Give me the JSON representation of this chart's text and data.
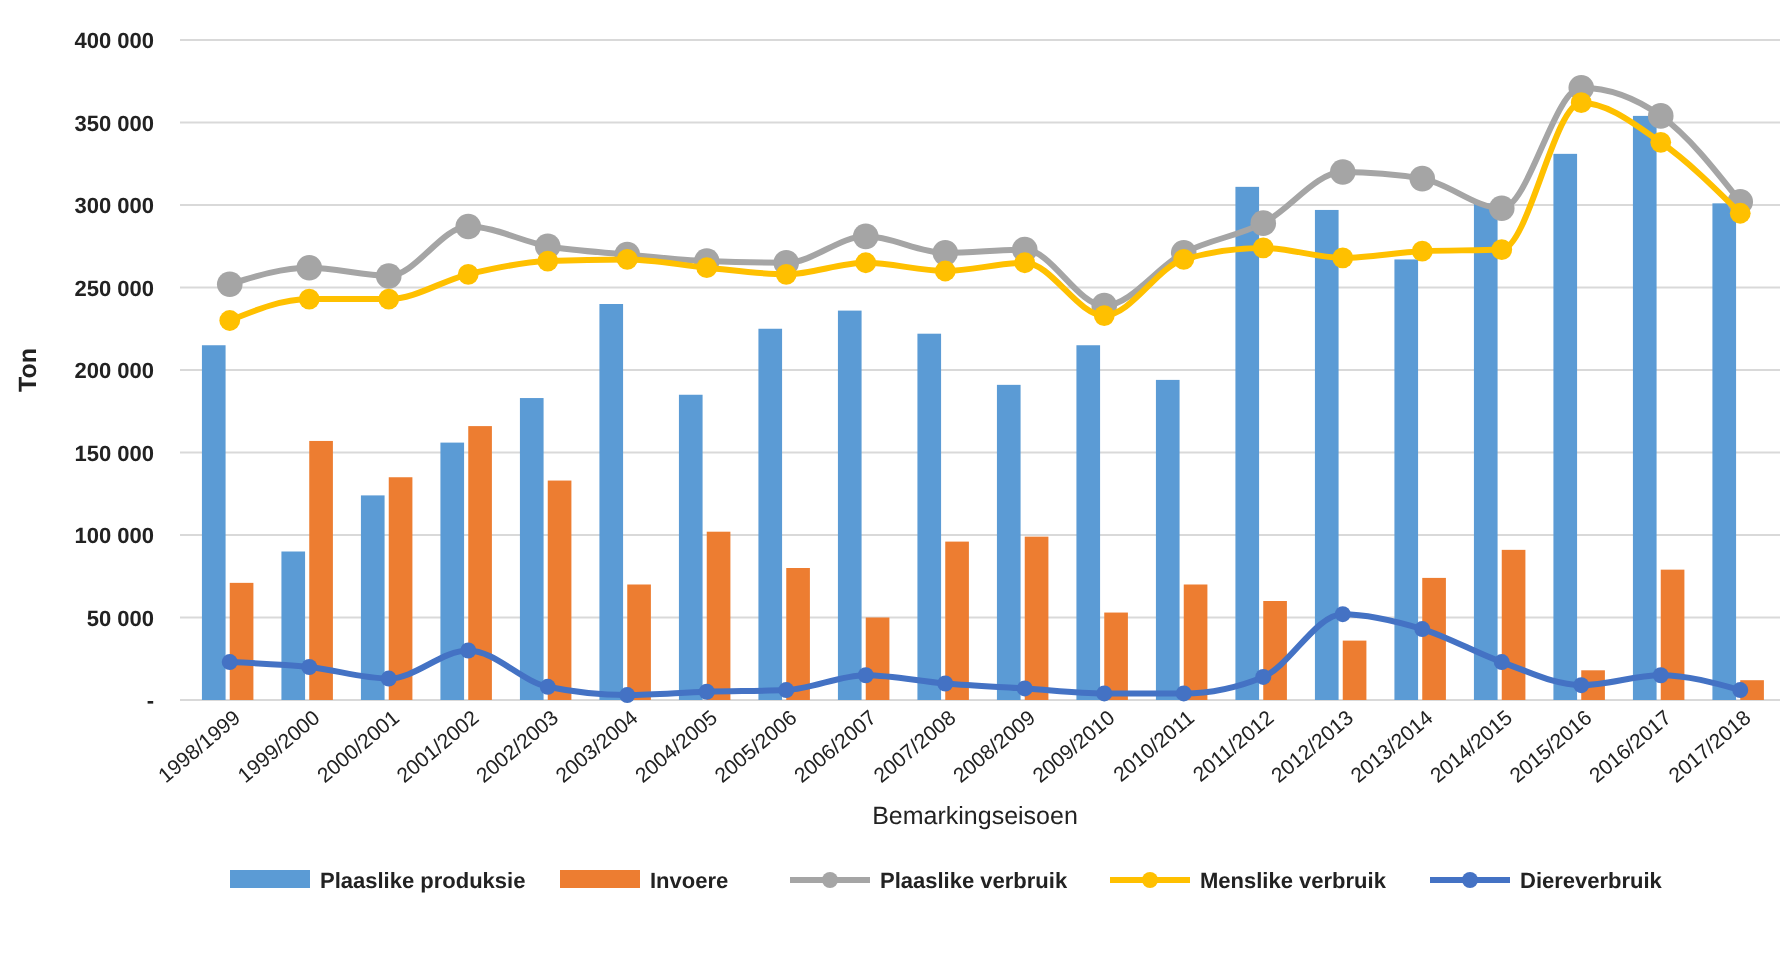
{
  "chart_data": {
    "type": "bar",
    "xlabel": "Bemarkingseisoen",
    "ylabel": "Ton",
    "categories": [
      "1998/1999",
      "1999/2000",
      "2000/2001",
      "2001/2002",
      "2002/2003",
      "2003/2004",
      "2004/2005",
      "2005/2006",
      "2006/2007",
      "2007/2008",
      "2008/2009",
      "2009/2010",
      "2010/2011",
      "2011/2012",
      "2012/2013",
      "2013/2014",
      "2014/2015",
      "2015/2016",
      "2016/2017",
      "2017/2018"
    ],
    "series": [
      {
        "name": "Plaaslike produksie",
        "color": "#5b9bd5",
        "values": [
          215000,
          90000,
          124000,
          156000,
          183000,
          240000,
          185000,
          225000,
          236000,
          222000,
          191000,
          215000,
          194000,
          311000,
          297000,
          267000,
          301000,
          331000,
          354000,
          301000
        ]
      },
      {
        "name": "Invoere",
        "color": "#ed7d31",
        "values": [
          71000,
          157000,
          135000,
          166000,
          133000,
          70000,
          102000,
          80000,
          50000,
          96000,
          99000,
          53000,
          70000,
          60000,
          36000,
          74000,
          91000,
          18000,
          79000,
          12000
        ]
      },
      {
        "name": "Plaaslike verbruik",
        "type": "line",
        "color": "#a5a5a5",
        "values": [
          252000,
          262000,
          257000,
          287000,
          275000,
          270000,
          266000,
          265000,
          281000,
          271000,
          273000,
          239000,
          271000,
          289000,
          320000,
          316000,
          298000,
          371000,
          354000,
          302000
        ]
      },
      {
        "name": "Menslike verbruik",
        "type": "line",
        "color": "#ffc000",
        "values": [
          230000,
          243000,
          243000,
          258000,
          266000,
          267000,
          262000,
          258000,
          265000,
          260000,
          265000,
          233000,
          267000,
          274000,
          268000,
          272000,
          273000,
          362000,
          338000,
          295000
        ]
      },
      {
        "name": "Diereverbruik",
        "type": "line",
        "color": "#4472c4",
        "values": [
          23000,
          20000,
          13000,
          30000,
          8000,
          3000,
          5000,
          6000,
          15000,
          10000,
          7000,
          4000,
          4000,
          14000,
          52000,
          43000,
          23000,
          9000,
          15000,
          6000
        ]
      }
    ],
    "ylim": [
      0,
      400000
    ],
    "yticks": [
      {
        "value": 0,
        "label": "-"
      },
      {
        "value": 50000,
        "label": "50 000"
      },
      {
        "value": 100000,
        "label": "100 000"
      },
      {
        "value": 150000,
        "label": "150 000"
      },
      {
        "value": 200000,
        "label": "200 000"
      },
      {
        "value": 250000,
        "label": "250 000"
      },
      {
        "value": 300000,
        "label": "300 000"
      },
      {
        "value": 350000,
        "label": "350 000"
      },
      {
        "value": 400000,
        "label": "400 000"
      }
    ],
    "grid": "y",
    "legend": "bottom",
    "marker": "circle"
  }
}
